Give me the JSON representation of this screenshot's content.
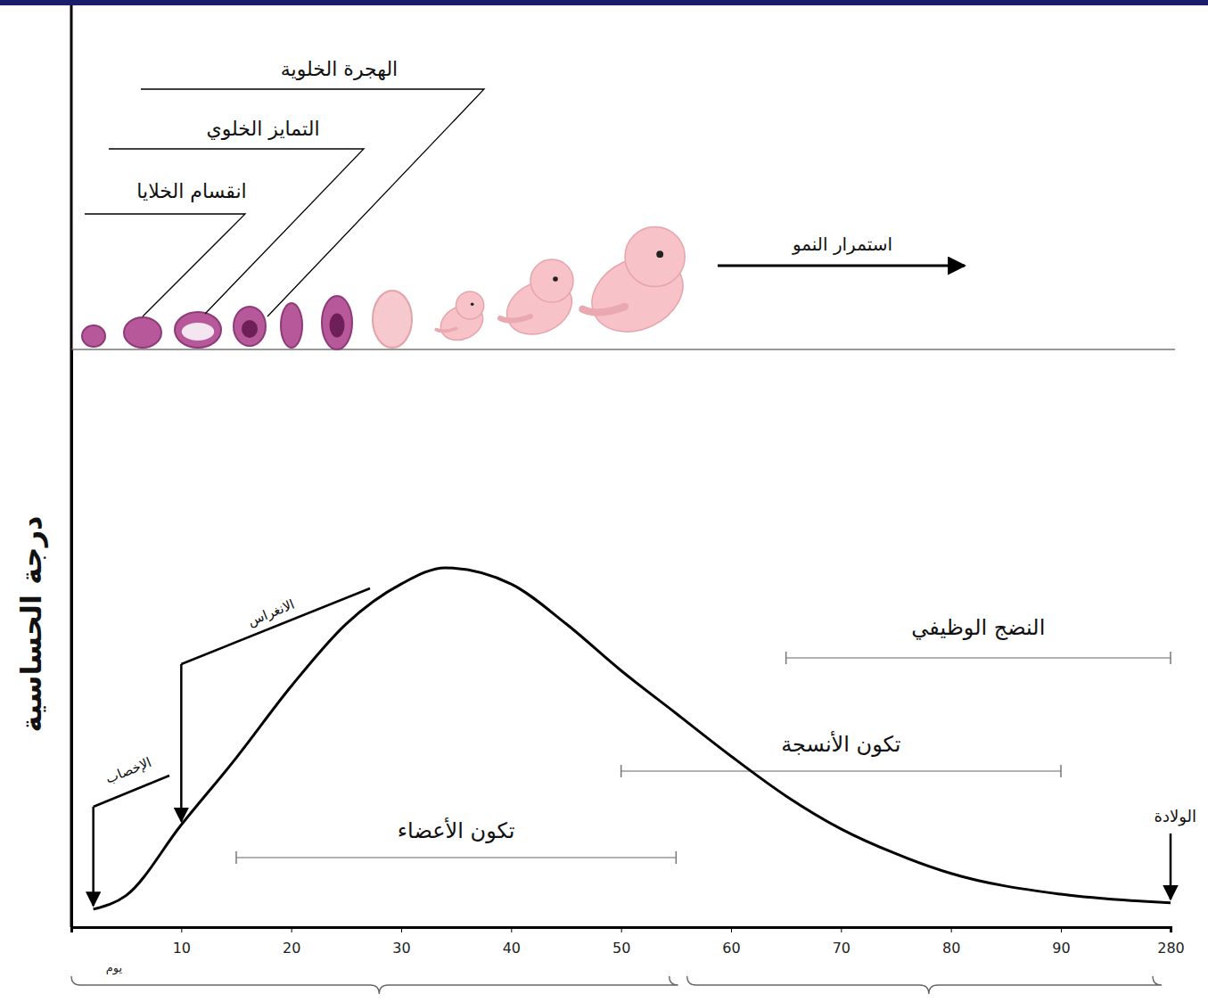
{
  "chart_data": {
    "type": "line",
    "ylabel": "درجة الحساسية",
    "xlabel": "يوم",
    "x": [
      2,
      5,
      10,
      15,
      20,
      25,
      30,
      34,
      40,
      45,
      50,
      55,
      60,
      65,
      70,
      75,
      80,
      90,
      280
    ],
    "series": [
      {
        "color": "#000000",
        "values": [
          3.1,
          5.5,
          17.7,
          29.3,
          41.7,
          52.5,
          59.4,
          62.2,
          59.4,
          52.5,
          44.4,
          37.0,
          29.6,
          22.7,
          17.0,
          12.7,
          9.3,
          5.7,
          4.2
        ]
      }
    ],
    "xlim": [
      0,
      280
    ],
    "xticks": [
      10,
      20,
      30,
      40,
      50,
      60,
      70,
      80,
      90,
      280
    ],
    "ylim": [
      0,
      100
    ],
    "yticks": [],
    "tick_labels": "x",
    "grid": false,
    "annotations": [
      {
        "text": "الإخصاب",
        "x": 2
      },
      {
        "text": "الانغراس",
        "x": 10
      },
      {
        "text": "الولادة",
        "x": 280
      }
    ],
    "periods": [
      {
        "label": "تكون الأعضاء",
        "start": 15,
        "end": 55
      },
      {
        "label": "تكون الأنسجة",
        "start": 50,
        "end": 90
      },
      {
        "label": "النضج الوظيفي",
        "start": 65,
        "end": 280
      }
    ],
    "braces": [
      {
        "start": 0,
        "end": 56
      },
      {
        "start": 56,
        "end": 280
      }
    ],
    "stages": [
      {
        "label": "انقسام الخلايا"
      },
      {
        "label": "التمايز الخلوي"
      },
      {
        "label": "الهجرة الخلوية"
      }
    ],
    "growth_label": "استمرار النمو"
  }
}
